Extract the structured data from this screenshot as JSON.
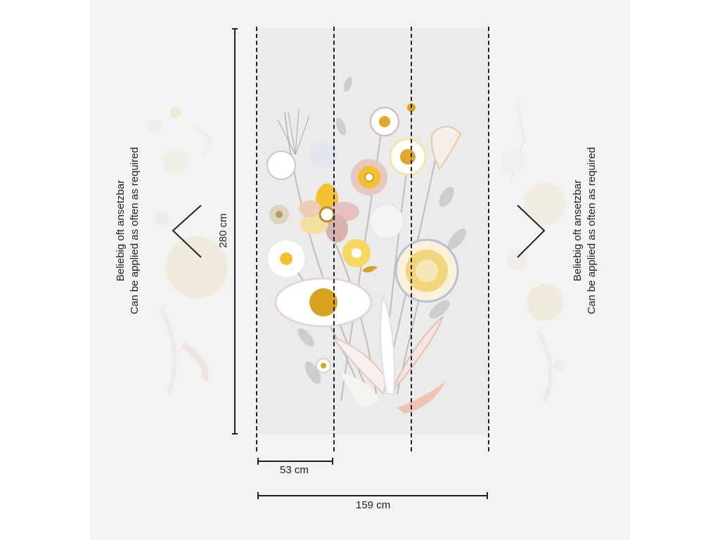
{
  "dimensions": {
    "height_label": "280 cm",
    "panel_width_label": "53 cm",
    "total_width_label": "159 cm"
  },
  "notes": {
    "left": {
      "line1": "Beliebig oft ansetzbar",
      "line2": "Can be applied as often as required"
    },
    "right": {
      "line1": "Beliebig oft ansetzbar",
      "line2": "Can be applied as often as required"
    }
  },
  "colors": {
    "canvas": "#f3f3f3",
    "panel": "#ebebeb",
    "yellow": "#f2c230",
    "ochre": "#d9a21f",
    "rose": "#d8b2ad",
    "leaf": "#c9c9c9",
    "line": "#222222"
  }
}
